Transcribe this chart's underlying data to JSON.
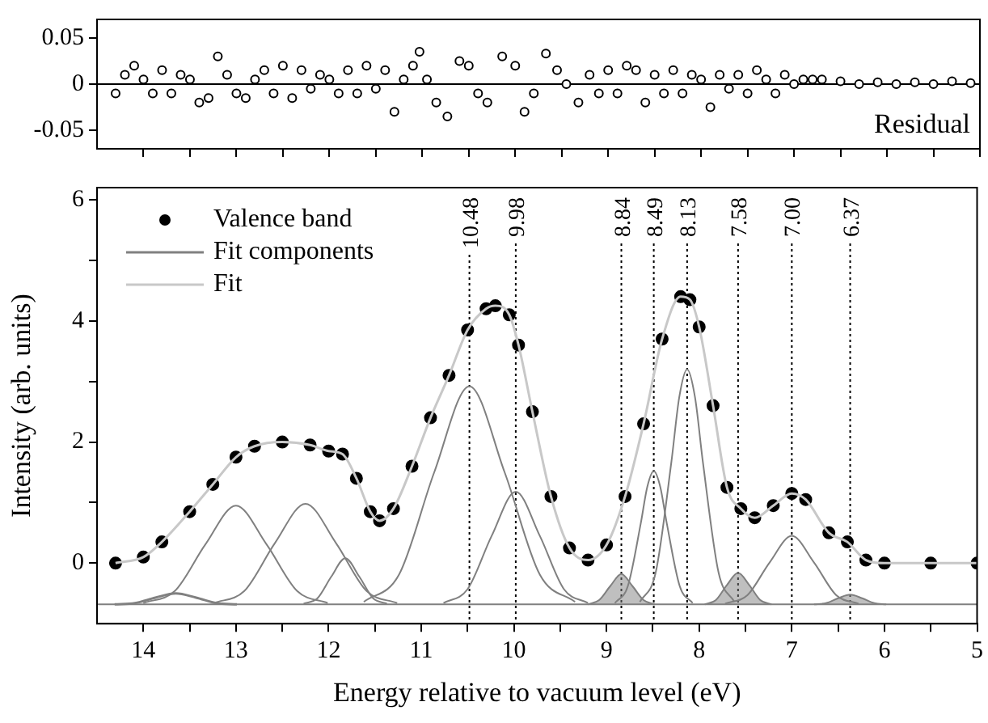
{
  "chart_data": [
    {
      "type": "scatter",
      "xlim": [
        14.5,
        5
      ],
      "xticks": [
        14,
        {
          "value": 13.5,
          "label": null
        },
        13,
        {
          "value": 12.5,
          "label": null
        },
        12,
        {
          "value": 11.5,
          "label": null
        },
        11,
        {
          "value": 10.5,
          "label": null
        },
        10,
        {
          "value": 9.5,
          "label": null
        },
        9,
        {
          "value": 8.5,
          "label": null
        },
        8,
        {
          "value": 7.5,
          "label": null
        },
        7,
        {
          "value": 6.5,
          "label": null
        },
        6,
        {
          "value": 5.5,
          "label": null
        },
        5
      ],
      "ylim": [
        -0.07,
        0.07
      ],
      "yticks": [
        0.05,
        0,
        -0.05
      ],
      "tick_labels": "y",
      "grid": false,
      "marker": "circle",
      "annotations": [
        "Residual"
      ],
      "ref_lines": [
        {
          "axis": "y",
          "value": 0,
          "color": "#000000",
          "line_style": "solid"
        }
      ],
      "series": [
        {
          "color": "#000000",
          "x": [
            14.3,
            14.2,
            14.1,
            14.0,
            13.9,
            13.8,
            13.7,
            13.6,
            13.5,
            13.4,
            13.3,
            13.2,
            13.1,
            13.0,
            12.9,
            12.8,
            12.7,
            12.6,
            12.5,
            12.4,
            12.3,
            12.2,
            12.1,
            12.0,
            11.9,
            11.8,
            11.7,
            11.6,
            11.5,
            11.4,
            11.3,
            11.2,
            11.1,
            11.03,
            10.95,
            10.85,
            10.73,
            10.6,
            10.5,
            10.4,
            10.3,
            10.14,
            10.0,
            9.9,
            9.8,
            9.67,
            9.55,
            9.45,
            9.32,
            9.2,
            9.1,
            9.0,
            8.9,
            8.8,
            8.7,
            8.6,
            8.5,
            8.4,
            8.3,
            8.2,
            8.1,
            8.0,
            7.9,
            7.8,
            7.7,
            7.6,
            7.5,
            7.4,
            7.3,
            7.2,
            7.1,
            7.0,
            6.9,
            6.8,
            6.7,
            6.5,
            6.3,
            6.1,
            5.9,
            5.7,
            5.5,
            5.3,
            5.1
          ],
          "values": [
            -0.01,
            0.01,
            0.02,
            0.005,
            -0.01,
            0.015,
            -0.01,
            0.01,
            0.005,
            -0.02,
            -0.015,
            0.03,
            0.01,
            -0.01,
            -0.015,
            0.005,
            0.015,
            -0.01,
            0.02,
            -0.015,
            0.015,
            -0.005,
            0.01,
            0.005,
            -0.01,
            0.015,
            -0.01,
            0.02,
            -0.005,
            0.015,
            -0.03,
            0.005,
            0.02,
            0.035,
            0.005,
            -0.02,
            -0.035,
            0.025,
            0.02,
            -0.01,
            -0.02,
            0.03,
            0.02,
            -0.03,
            -0.01,
            0.033,
            0.015,
            0.0,
            -0.02,
            0.01,
            -0.01,
            0.015,
            -0.01,
            0.02,
            0.015,
            -0.02,
            0.01,
            -0.01,
            0.015,
            -0.01,
            0.01,
            0.005,
            -0.025,
            0.01,
            -0.005,
            0.01,
            -0.01,
            0.015,
            0.005,
            -0.01,
            0.01,
            0.0,
            0.005,
            0.005,
            0.005,
            0.003,
            0.0,
            0.002,
            0.0,
            0.002,
            0.0,
            0.003,
            0.001
          ]
        }
      ]
    },
    {
      "type": "line",
      "xlabel": "Energy relative to vacuum level (eV)",
      "ylabel": "Intensity (arb. units)",
      "xlim": [
        14.5,
        5
      ],
      "xticks": [
        14,
        {
          "value": 13.5,
          "label": null
        },
        13,
        {
          "value": 12.5,
          "label": null
        },
        12,
        {
          "value": 11.5,
          "label": null
        },
        11,
        {
          "value": 10.5,
          "label": null
        },
        10,
        {
          "value": 9.5,
          "label": null
        },
        9,
        {
          "value": 8.5,
          "label": null
        },
        8,
        {
          "value": 7.5,
          "label": null
        },
        7,
        {
          "value": 6.5,
          "label": null
        },
        6,
        {
          "value": 5.5,
          "label": null
        },
        5
      ],
      "ylim": [
        -1,
        6.2
      ],
      "yticks": [
        0,
        {
          "value": 1,
          "label": null
        },
        2,
        {
          "value": 3,
          "label": null
        },
        4,
        {
          "value": 5,
          "label": null
        },
        6
      ],
      "grid": false,
      "legend": "top left",
      "ref_lines": [
        {
          "axis": "y",
          "value": -0.68,
          "color": "#808080",
          "line_style": "solid"
        },
        {
          "axis": "x",
          "value": 10.48,
          "label": "10.48",
          "color": "#000000",
          "line_style": "dotted"
        },
        {
          "axis": "x",
          "value": 9.98,
          "label": "9.98",
          "color": "#000000",
          "line_style": "dotted"
        },
        {
          "axis": "x",
          "value": 8.84,
          "label": "8.84",
          "color": "#000000",
          "line_style": "dotted"
        },
        {
          "axis": "x",
          "value": 8.49,
          "label": "8.49",
          "color": "#000000",
          "line_style": "dotted"
        },
        {
          "axis": "x",
          "value": 8.13,
          "label": "8.13",
          "color": "#000000",
          "line_style": "dotted"
        },
        {
          "axis": "x",
          "value": 7.58,
          "label": "7.58",
          "color": "#000000",
          "line_style": "dotted"
        },
        {
          "axis": "x",
          "value": 7.0,
          "label": "7.00",
          "color": "#000000",
          "line_style": "dotted"
        },
        {
          "axis": "x",
          "value": 6.37,
          "label": "6.37",
          "color": "#000000",
          "line_style": "dotted"
        }
      ],
      "series": [
        {
          "name": "Valence band",
          "type": "scatter",
          "marker": "circle",
          "color": "#000000",
          "x": [
            14.3,
            14.0,
            13.8,
            13.5,
            13.25,
            13.0,
            12.8,
            12.5,
            12.2,
            12.0,
            11.85,
            11.7,
            11.55,
            11.45,
            11.3,
            11.1,
            10.9,
            10.7,
            10.5,
            10.3,
            10.2,
            10.05,
            9.95,
            9.8,
            9.6,
            9.4,
            9.2,
            9.0,
            8.8,
            8.6,
            8.4,
            8.2,
            8.1,
            8.0,
            7.85,
            7.7,
            7.55,
            7.4,
            7.2,
            7.0,
            6.85,
            6.6,
            6.4,
            6.2,
            6.0,
            5.5,
            5.0
          ],
          "values": [
            0.0,
            0.1,
            0.35,
            0.85,
            1.3,
            1.75,
            1.93,
            2.0,
            1.95,
            1.85,
            1.8,
            1.4,
            0.85,
            0.7,
            0.9,
            1.6,
            2.4,
            3.1,
            3.85,
            4.2,
            4.25,
            4.1,
            3.6,
            2.5,
            1.1,
            0.25,
            0.05,
            0.3,
            1.1,
            2.3,
            3.7,
            4.4,
            4.35,
            3.9,
            2.6,
            1.25,
            0.9,
            0.75,
            0.95,
            1.15,
            1.05,
            0.5,
            0.35,
            0.05,
            0.0,
            0.0,
            0.0
          ]
        },
        {
          "name": "Fit components",
          "color": "#808080",
          "x": [
            14.31,
            14.09,
            13.87,
            13.65,
            13.43,
            13.21,
            12.99
          ],
          "values": [
            -0.68,
            -0.66,
            -0.57,
            -0.5,
            -0.57,
            -0.66,
            -0.68
          ]
        },
        {
          "color": "#808080",
          "x": [
            14.0,
            13.66,
            13.33,
            13.0,
            12.67,
            12.34,
            12.01
          ],
          "values": [
            -0.66,
            -0.46,
            0.31,
            0.95,
            0.31,
            -0.46,
            -0.66
          ]
        },
        {
          "color": "#808080",
          "x": [
            13.24,
            12.91,
            12.58,
            12.25,
            11.92,
            11.59,
            11.26
          ],
          "values": [
            -0.66,
            -0.46,
            0.33,
            0.98,
            0.33,
            -0.46,
            -0.66
          ]
        },
        {
          "color": "#808080",
          "x": [
            12.27,
            12.12,
            11.97,
            11.82,
            11.67,
            11.52,
            11.37
          ],
          "values": [
            -0.67,
            -0.58,
            -0.22,
            0.08,
            -0.22,
            -0.58,
            -0.67
          ]
        },
        {
          "color": "#808080",
          "x": [
            11.62,
            11.24,
            10.86,
            10.48,
            10.1,
            9.72,
            9.34
          ],
          "values": [
            -0.64,
            -0.19,
            1.5,
            2.92,
            1.5,
            -0.19,
            -0.64
          ]
        },
        {
          "color": "#808080",
          "x": [
            10.76,
            10.5,
            10.24,
            9.98,
            9.72,
            9.46,
            9.2
          ],
          "values": [
            -0.66,
            -0.43,
            0.45,
            1.18,
            0.45,
            -0.43,
            -0.66
          ]
        },
        {
          "type": "area",
          "color": "#808080",
          "x": [
            9.2,
            9.08,
            8.96,
            8.84,
            8.72,
            8.6,
            8.48
          ],
          "values": [
            -0.68,
            -0.61,
            -0.38,
            -0.18,
            -0.38,
            -0.61,
            -0.68
          ]
        },
        {
          "color": "#808080",
          "x": [
            8.91,
            8.77,
            8.63,
            8.56,
            8.49,
            8.42,
            8.35,
            8.21,
            8.07
          ],
          "values": [
            -0.66,
            -0.38,
            0.66,
            1.26,
            1.52,
            1.26,
            0.66,
            -0.38,
            -0.66
          ]
        },
        {
          "color": "#808080",
          "x": [
            8.64,
            8.47,
            8.3,
            8.215,
            8.13,
            8.045,
            7.96,
            7.79,
            7.62
          ],
          "values": [
            -0.64,
            -0.16,
            1.67,
            2.74,
            3.2,
            2.74,
            1.67,
            -0.16,
            -0.64
          ]
        },
        {
          "type": "area",
          "color": "#808080",
          "x": [
            7.94,
            7.82,
            7.7,
            7.58,
            7.46,
            7.34,
            7.22
          ],
          "values": [
            -0.68,
            -0.61,
            -0.36,
            -0.16,
            -0.36,
            -0.61,
            -0.68
          ]
        },
        {
          "color": "#808080",
          "x": [
            7.72,
            7.48,
            7.24,
            7.0,
            6.76,
            6.52,
            6.28
          ],
          "values": [
            -0.67,
            -0.53,
            0.01,
            0.45,
            0.01,
            -0.53,
            -0.67
          ]
        },
        {
          "type": "area",
          "color": "#808080",
          "x": [
            6.76,
            6.63,
            6.5,
            6.37,
            6.24,
            6.11,
            5.98
          ],
          "values": [
            -0.68,
            -0.66,
            -0.58,
            -0.52,
            -0.58,
            -0.66,
            -0.68
          ]
        },
        {
          "name": "Fit",
          "color": "#c8c8c8",
          "x": [
            14.3,
            14.0,
            13.8,
            13.5,
            13.25,
            13.0,
            12.8,
            12.5,
            12.2,
            12.0,
            11.85,
            11.7,
            11.55,
            11.45,
            11.3,
            11.1,
            10.9,
            10.7,
            10.5,
            10.3,
            10.2,
            10.05,
            9.95,
            9.8,
            9.6,
            9.4,
            9.2,
            9.0,
            8.8,
            8.6,
            8.4,
            8.2,
            8.1,
            8.0,
            7.85,
            7.7,
            7.55,
            7.4,
            7.2,
            7.0,
            6.85,
            6.6,
            6.4,
            6.2,
            6.0,
            5.5,
            5.0
          ],
          "values": [
            0.0,
            0.1,
            0.35,
            0.85,
            1.3,
            1.75,
            1.93,
            2.0,
            1.95,
            1.85,
            1.8,
            1.4,
            0.85,
            0.7,
            0.9,
            1.6,
            2.4,
            3.1,
            3.85,
            4.2,
            4.25,
            4.1,
            3.6,
            2.5,
            1.1,
            0.25,
            0.05,
            0.3,
            1.1,
            2.3,
            3.7,
            4.4,
            4.35,
            3.9,
            2.6,
            1.25,
            0.9,
            0.75,
            0.95,
            1.15,
            1.05,
            0.5,
            0.35,
            0.05,
            0.0,
            0.0,
            0.0
          ]
        }
      ]
    }
  ]
}
